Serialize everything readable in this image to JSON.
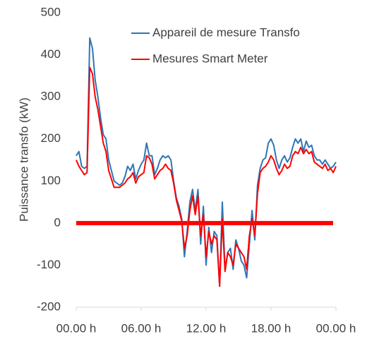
{
  "chart_data": {
    "type": "line",
    "y_label": "Puissance transfo (kW)",
    "x": [
      0,
      0.25,
      0.5,
      0.75,
      1,
      1.25,
      1.5,
      1.75,
      2,
      2.25,
      2.5,
      2.75,
      3,
      3.25,
      3.5,
      3.75,
      4,
      4.25,
      4.5,
      4.75,
      5,
      5.25,
      5.5,
      5.75,
      6,
      6.25,
      6.5,
      6.75,
      7,
      7.25,
      7.5,
      7.75,
      8,
      8.25,
      8.5,
      8.75,
      9,
      9.25,
      9.5,
      9.75,
      10,
      10.25,
      10.5,
      10.75,
      11,
      11.25,
      11.5,
      11.75,
      12,
      12.25,
      12.5,
      12.75,
      13,
      13.25,
      13.5,
      13.75,
      14,
      14.25,
      14.5,
      14.75,
      15,
      15.25,
      15.5,
      15.75,
      16,
      16.25,
      16.5,
      16.75,
      17,
      17.25,
      17.5,
      17.75,
      18,
      18.25,
      18.5,
      18.75,
      19,
      19.25,
      19.5,
      19.75,
      20,
      20.25,
      20.5,
      20.75,
      21,
      21.25,
      21.5,
      21.75,
      22,
      22.25,
      22.5,
      22.75,
      23,
      23.25,
      23.5,
      23.75,
      24
    ],
    "series": [
      {
        "name": "Appareil de mesure Transfo",
        "color": "#2e75b6",
        "values": [
          160,
          170,
          135,
          130,
          135,
          440,
          415,
          340,
          300,
          250,
          210,
          200,
          150,
          125,
          100,
          95,
          90,
          95,
          110,
          135,
          125,
          140,
          105,
          125,
          140,
          150,
          190,
          160,
          160,
          115,
          130,
          150,
          160,
          155,
          160,
          150,
          100,
          60,
          40,
          10,
          -80,
          -20,
          50,
          80,
          30,
          80,
          -50,
          40,
          -100,
          -10,
          -70,
          -20,
          -30,
          -150,
          50,
          -110,
          -70,
          -60,
          -110,
          -40,
          -60,
          -90,
          -100,
          -130,
          -50,
          30,
          -40,
          90,
          130,
          150,
          155,
          190,
          200,
          185,
          150,
          130,
          150,
          160,
          145,
          155,
          180,
          200,
          190,
          200,
          170,
          195,
          180,
          185,
          160,
          150,
          150,
          140,
          150,
          140,
          130,
          135,
          145
        ]
      },
      {
        "name": "Mesures Smart Meter",
        "color": "#ff0000",
        "values": [
          150,
          135,
          125,
          115,
          120,
          370,
          355,
          300,
          270,
          230,
          190,
          170,
          125,
          105,
          85,
          85,
          85,
          90,
          95,
          105,
          110,
          120,
          95,
          110,
          115,
          120,
          160,
          155,
          140,
          105,
          115,
          125,
          130,
          140,
          130,
          125,
          95,
          55,
          30,
          5,
          -60,
          -30,
          30,
          65,
          20,
          65,
          -30,
          20,
          -80,
          -20,
          -50,
          -30,
          -40,
          -150,
          10,
          -115,
          -70,
          -80,
          -100,
          -50,
          -60,
          -70,
          -80,
          -110,
          -30,
          10,
          -30,
          70,
          120,
          130,
          135,
          145,
          160,
          150,
          130,
          115,
          125,
          140,
          130,
          135,
          160,
          170,
          165,
          180,
          165,
          175,
          165,
          170,
          145,
          140,
          135,
          130,
          140,
          125,
          130,
          120,
          135
        ]
      }
    ],
    "reference_line": {
      "value": 0,
      "color": "#ff0000"
    },
    "xlim": [
      0,
      24
    ],
    "xticks": [
      {
        "value": 0,
        "label": "00.00 h"
      },
      {
        "value": 6,
        "label": "06.00 h"
      },
      {
        "value": 12,
        "label": "12.00 h"
      },
      {
        "value": 18,
        "label": "18.00 h"
      },
      {
        "value": 24,
        "label": "00.00 h"
      }
    ],
    "ylim": [
      -200,
      500
    ],
    "yticks": [
      -200,
      -100,
      0,
      100,
      200,
      300,
      400,
      500
    ],
    "grid": false,
    "legend": "top-right"
  }
}
